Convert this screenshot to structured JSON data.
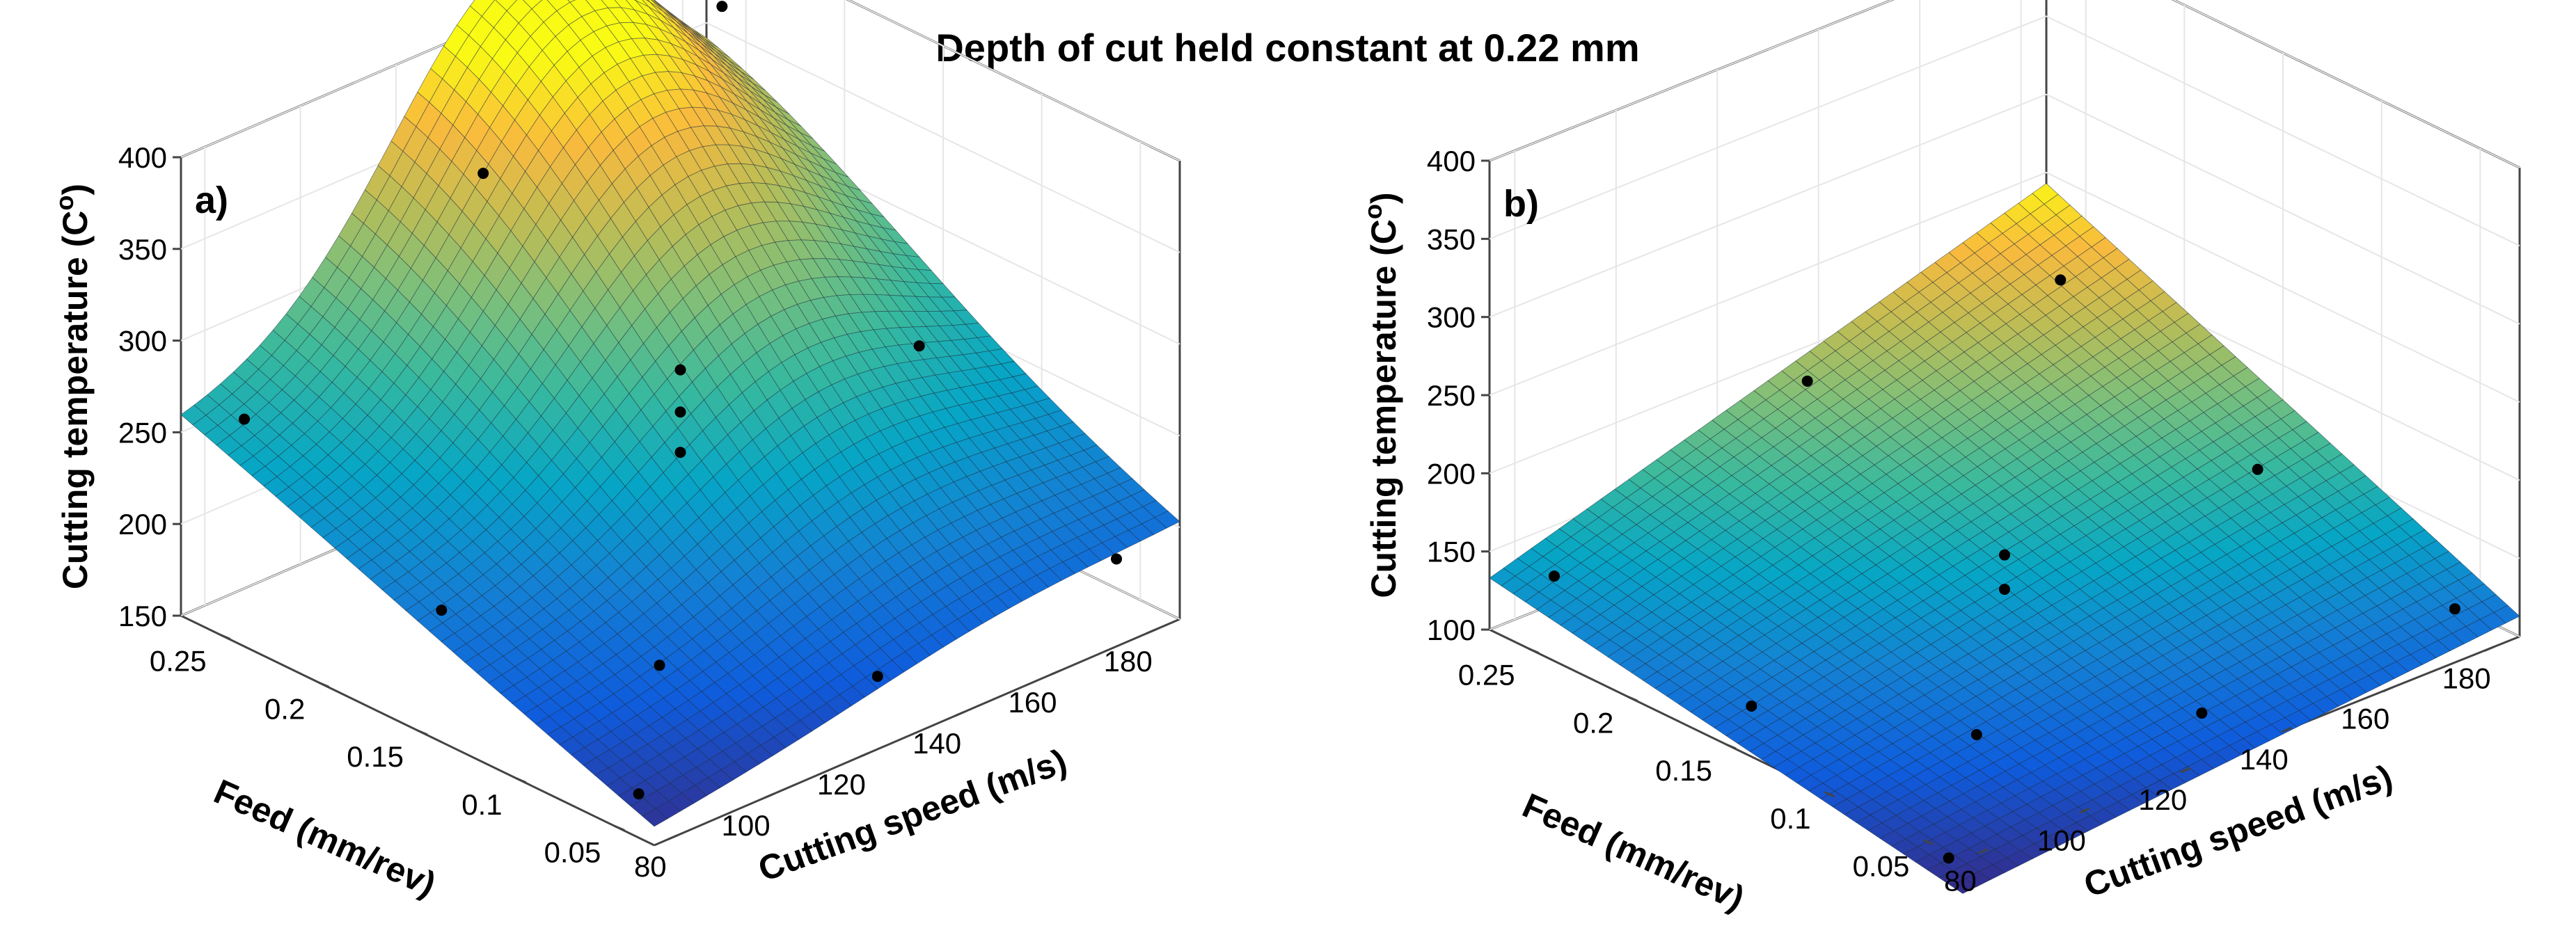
{
  "title": "Depth of cut held constant at 0.22 mm",
  "chart_data": [
    {
      "type": "surface",
      "panel_label": "a)",
      "xlabel": "Cutting speed (m/s)",
      "ylabel": "Feed (mm/rev)",
      "zlabel": "Cutting temperature (C",
      "zlabel_sup": "o",
      "zlabel_close": ")",
      "xlim": [
        75,
        185
      ],
      "ylim": [
        0.03,
        0.27
      ],
      "zlim": [
        150,
        400
      ],
      "xticks": [
        "80",
        "100",
        "120",
        "140",
        "160",
        "180"
      ],
      "yticks": [
        "0.05",
        "0.1",
        "0.15",
        "0.2",
        "0.25"
      ],
      "zticks": [
        "150",
        "200",
        "250",
        "300",
        "350",
        "400"
      ],
      "points": [
        {
          "speed": 80,
          "feed": 0.05,
          "temp": 162
        },
        {
          "speed": 80,
          "feed": 0.15,
          "temp": 210
        },
        {
          "speed": 80,
          "feed": 0.25,
          "temp": 262
        },
        {
          "speed": 130,
          "feed": 0.05,
          "temp": 170
        },
        {
          "speed": 130,
          "feed": 0.15,
          "temp": 240
        },
        {
          "speed": 130,
          "feed": 0.15,
          "temp": 262
        },
        {
          "speed": 130,
          "feed": 0.15,
          "temp": 285
        },
        {
          "speed": 130,
          "feed": 0.25,
          "temp": 340
        },
        {
          "speed": 180,
          "feed": 0.05,
          "temp": 178
        },
        {
          "speed": 180,
          "feed": 0.15,
          "temp": 242
        },
        {
          "speed": 180,
          "feed": 0.25,
          "temp": 375
        },
        {
          "speed": 105,
          "feed": 0.1,
          "temp": 178
        }
      ],
      "surface": {
        "model": "quadratic",
        "base": 255,
        "range_min": 155,
        "range_max": 400
      }
    },
    {
      "type": "surface",
      "panel_label": "b)",
      "xlabel": "Cutting speed (m/s)",
      "ylabel": "Feed (mm/rev)",
      "zlabel": "Cutting temperature (C",
      "zlabel_sup": "o",
      "zlabel_close": ")",
      "xlim": [
        75,
        185
      ],
      "ylim": [
        0.03,
        0.27
      ],
      "zlim": [
        100,
        400
      ],
      "xticks": [
        "80",
        "100",
        "120",
        "140",
        "160",
        "180"
      ],
      "yticks": [
        "0.05",
        "0.1",
        "0.15",
        "0.2",
        "0.25"
      ],
      "zticks": [
        "100",
        "150",
        "200",
        "250",
        "300",
        "350",
        "400"
      ],
      "points": [
        {
          "speed": 80,
          "feed": 0.05,
          "temp": 82
        },
        {
          "speed": 80,
          "feed": 0.15,
          "temp": 118
        },
        {
          "speed": 80,
          "feed": 0.25,
          "temp": 140
        },
        {
          "speed": 130,
          "feed": 0.05,
          "temp": 110
        },
        {
          "speed": 130,
          "feed": 0.15,
          "temp": 128
        },
        {
          "speed": 130,
          "feed": 0.15,
          "temp": 150
        },
        {
          "speed": 130,
          "feed": 0.25,
          "temp": 200
        },
        {
          "speed": 180,
          "feed": 0.05,
          "temp": 112
        },
        {
          "speed": 180,
          "feed": 0.15,
          "temp": 140
        },
        {
          "speed": 180,
          "feed": 0.25,
          "temp": 200
        },
        {
          "speed": 105,
          "feed": 0.1,
          "temp": 98
        }
      ],
      "surface": {
        "model": "bilinear",
        "base": 130,
        "range_min": 78,
        "range_max": 245
      }
    }
  ]
}
